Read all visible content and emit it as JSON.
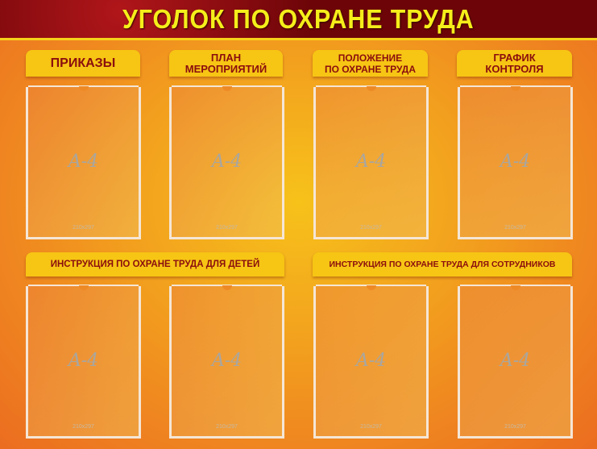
{
  "title": "УГОЛОК ПО ОХРАНЕ ТРУДА",
  "sections_row1": [
    {
      "label": "ПРИКАЗЫ"
    },
    {
      "label": "ПЛАН\nМЕРОПРИЯТИЙ"
    },
    {
      "label": "ПОЛОЖЕНИЕ\nПО ОХРАНЕ ТРУДА"
    },
    {
      "label": "ГРАФИК\nКОНТРОЛЯ"
    }
  ],
  "sections_row2": [
    {
      "label": "ИНСТРУКЦИЯ ПО ОХРАНЕ ТРУДА ДЛЯ ДЕТЕЙ"
    },
    {
      "label": "ИНСТРУКЦИЯ ПО ОХРАНЕ ТРУДА ДЛЯ СОТРУДНИКОВ"
    }
  ],
  "pocket": {
    "format": "A-4",
    "size": "210x297"
  },
  "colors": {
    "header": "#7a0709",
    "title": "#f5ee1a",
    "tab": "#f7c514",
    "tab_text": "#8a0e0e",
    "background": "#f3a51e"
  }
}
